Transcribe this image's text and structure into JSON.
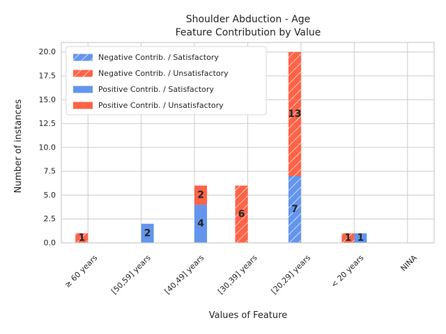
{
  "chart_data": {
    "type": "bar",
    "title": "Shoulder Abduction - Age",
    "subtitle": "Feature Contribution by Value",
    "xlabel": "Values of Feature",
    "ylabel": "Number of instances",
    "ylim": [
      0,
      21.0
    ],
    "yticks": [
      0.0,
      2.5,
      5.0,
      7.5,
      10.0,
      12.5,
      15.0,
      17.5,
      20.0
    ],
    "grid": true,
    "legend_position": "top-left",
    "colors": {
      "satisfactory": "#6495ED",
      "unsatisfactory": "#FF6347"
    },
    "categories": [
      "≥ 60 years",
      "[50,59] years",
      "[40,49] years",
      "[30,39] years",
      "[20,29] years",
      "< 20 years",
      "NINA"
    ],
    "series": [
      {
        "name": "Negative Contrib. / Satisfactory",
        "hatch": true,
        "color_key": "satisfactory",
        "group": "negative",
        "values": [
          0,
          0,
          0,
          0,
          7,
          0,
          0
        ]
      },
      {
        "name": "Negative Contrib. / Unsatisfactory",
        "hatch": true,
        "color_key": "unsatisfactory",
        "group": "negative",
        "values": [
          1,
          0,
          0,
          6,
          13,
          1,
          0
        ]
      },
      {
        "name": "Positive Contrib. / Satisfactory",
        "hatch": false,
        "color_key": "satisfactory",
        "group": "positive",
        "values": [
          0,
          2,
          4,
          0,
          0,
          1,
          0
        ]
      },
      {
        "name": "Positive Contrib. / Unsatisfactory",
        "hatch": false,
        "color_key": "unsatisfactory",
        "group": "positive",
        "values": [
          0,
          0,
          2,
          0,
          0,
          0,
          0
        ]
      }
    ]
  }
}
